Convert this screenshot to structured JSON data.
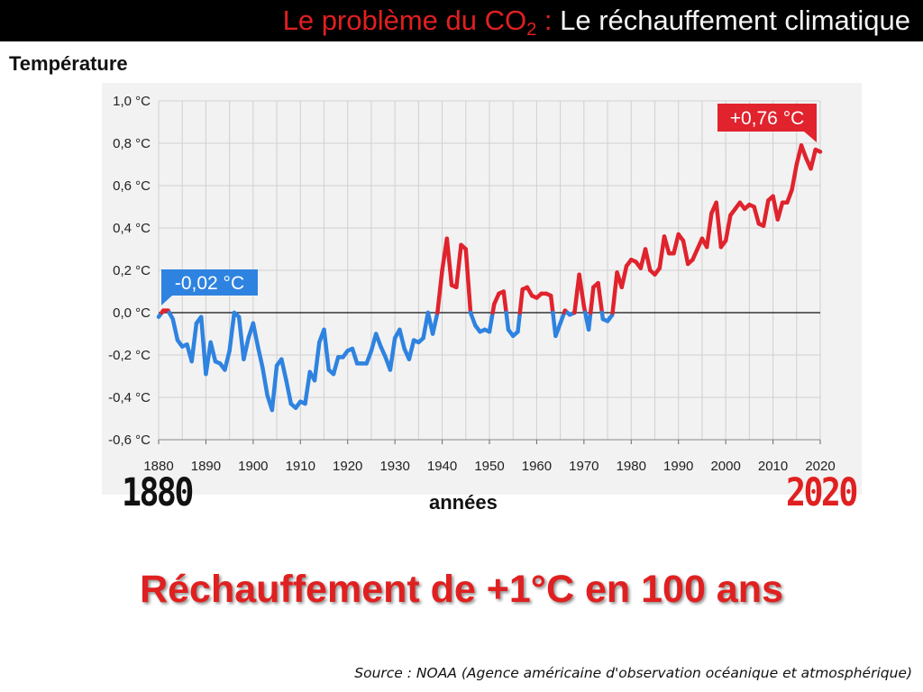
{
  "slide": {
    "title_red": "Le problème du CO",
    "title_sub": "2",
    "title_colon": " : ",
    "title_white": "Le réchauffement climatique",
    "headline": "Réchauffement de +1°C en 100 ans",
    "source": "Source : NOAA (Agence américaine d'observation océanique et atmosphérique)",
    "year_start": "1880",
    "year_end": "2020"
  },
  "colors": {
    "below_zero": "#2f83e0",
    "above_zero": "#e0232d",
    "accent_red": "#e02020",
    "grid": "#d0d0d0",
    "background": "#f2f2f2"
  },
  "chart_data": {
    "type": "line",
    "ylabel": "Température",
    "xlabel": "années",
    "xlim": [
      1880,
      2020
    ],
    "ylim": [
      -0.6,
      1.0
    ],
    "x_ticks": [
      "1880",
      "1890",
      "1900",
      "1910",
      "1920",
      "1930",
      "1940",
      "1950",
      "1960",
      "1970",
      "1980",
      "1990",
      "2000",
      "2010",
      "2020"
    ],
    "y_ticks": [
      "1,0 °C",
      "0,8 °C",
      "0,6 °C",
      "0,4 °C",
      "0,2 °C",
      "0,0 °C",
      "-0,2 °C",
      "-0,4 °C",
      "-0,6 °C"
    ],
    "grid": true,
    "annotations": [
      {
        "text": "-0,02 °C",
        "x": 1880,
        "y": -0.02,
        "color": "#2f83e0"
      },
      {
        "text": "+0,76 °C",
        "x": 2020,
        "y": 0.76,
        "color": "#e0232d"
      }
    ],
    "series": [
      {
        "x": [
          1880,
          1881,
          1882,
          1883,
          1884,
          1885,
          1886,
          1887,
          1888,
          1889,
          1890,
          1891,
          1892,
          1893,
          1894,
          1895,
          1896,
          1897,
          1898,
          1899,
          1900,
          1901,
          1902,
          1903,
          1904,
          1905,
          1906,
          1907,
          1908,
          1909,
          1910,
          1911,
          1912,
          1913,
          1914,
          1915,
          1916,
          1917,
          1918,
          1919,
          1920,
          1921,
          1922,
          1923,
          1924,
          1925,
          1926,
          1927,
          1928,
          1929,
          1930,
          1931,
          1932,
          1933,
          1934,
          1935,
          1936,
          1937,
          1938,
          1939,
          1940,
          1941,
          1942,
          1943,
          1944,
          1945,
          1946,
          1947,
          1948,
          1949,
          1950,
          1951,
          1952,
          1953,
          1954,
          1955,
          1956,
          1957,
          1958,
          1959,
          1960,
          1961,
          1962,
          1963,
          1964,
          1965,
          1966,
          1967,
          1968,
          1969,
          1970,
          1971,
          1972,
          1973,
          1974,
          1975,
          1976,
          1977,
          1978,
          1979,
          1980,
          1981,
          1982,
          1983,
          1984,
          1985,
          1986,
          1987,
          1988,
          1989,
          1990,
          1991,
          1992,
          1993,
          1994,
          1995,
          1996,
          1997,
          1998,
          1999,
          2000,
          2001,
          2002,
          2003,
          2004,
          2005,
          2006,
          2007,
          2008,
          2009,
          2010,
          2011,
          2012,
          2013,
          2014,
          2015,
          2016,
          2017,
          2018,
          2019,
          2020
        ],
        "y": [
          -0.02,
          0.01,
          0.01,
          -0.03,
          -0.13,
          -0.16,
          -0.15,
          -0.23,
          -0.05,
          -0.02,
          -0.29,
          -0.14,
          -0.23,
          -0.24,
          -0.27,
          -0.18,
          0.0,
          -0.02,
          -0.22,
          -0.12,
          -0.05,
          -0.16,
          -0.26,
          -0.39,
          -0.46,
          -0.25,
          -0.22,
          -0.32,
          -0.43,
          -0.45,
          -0.42,
          -0.43,
          -0.28,
          -0.32,
          -0.14,
          -0.08,
          -0.27,
          -0.29,
          -0.21,
          -0.21,
          -0.18,
          -0.17,
          -0.24,
          -0.24,
          -0.24,
          -0.18,
          -0.1,
          -0.16,
          -0.21,
          -0.27,
          -0.12,
          -0.08,
          -0.17,
          -0.22,
          -0.13,
          -0.14,
          -0.12,
          0.0,
          -0.1,
          0.0,
          0.2,
          0.35,
          0.13,
          0.12,
          0.32,
          0.3,
          0.0,
          -0.06,
          -0.09,
          -0.08,
          -0.09,
          0.04,
          0.09,
          0.1,
          -0.08,
          -0.11,
          -0.09,
          0.11,
          0.12,
          0.08,
          0.07,
          0.09,
          0.09,
          0.08,
          -0.11,
          -0.05,
          0.01,
          -0.01,
          0.0,
          0.18,
          0.03,
          -0.08,
          0.12,
          0.14,
          -0.03,
          -0.04,
          -0.01,
          0.19,
          0.12,
          0.22,
          0.25,
          0.24,
          0.21,
          0.3,
          0.2,
          0.18,
          0.21,
          0.36,
          0.28,
          0.28,
          0.37,
          0.34,
          0.23,
          0.25,
          0.3,
          0.35,
          0.31,
          0.47,
          0.52,
          0.31,
          0.34,
          0.46,
          0.49,
          0.52,
          0.49,
          0.51,
          0.5,
          0.42,
          0.41,
          0.53,
          0.55,
          0.44,
          0.52,
          0.52,
          0.58,
          0.7,
          0.79,
          0.73,
          0.68,
          0.77,
          0.76
        ]
      }
    ]
  }
}
